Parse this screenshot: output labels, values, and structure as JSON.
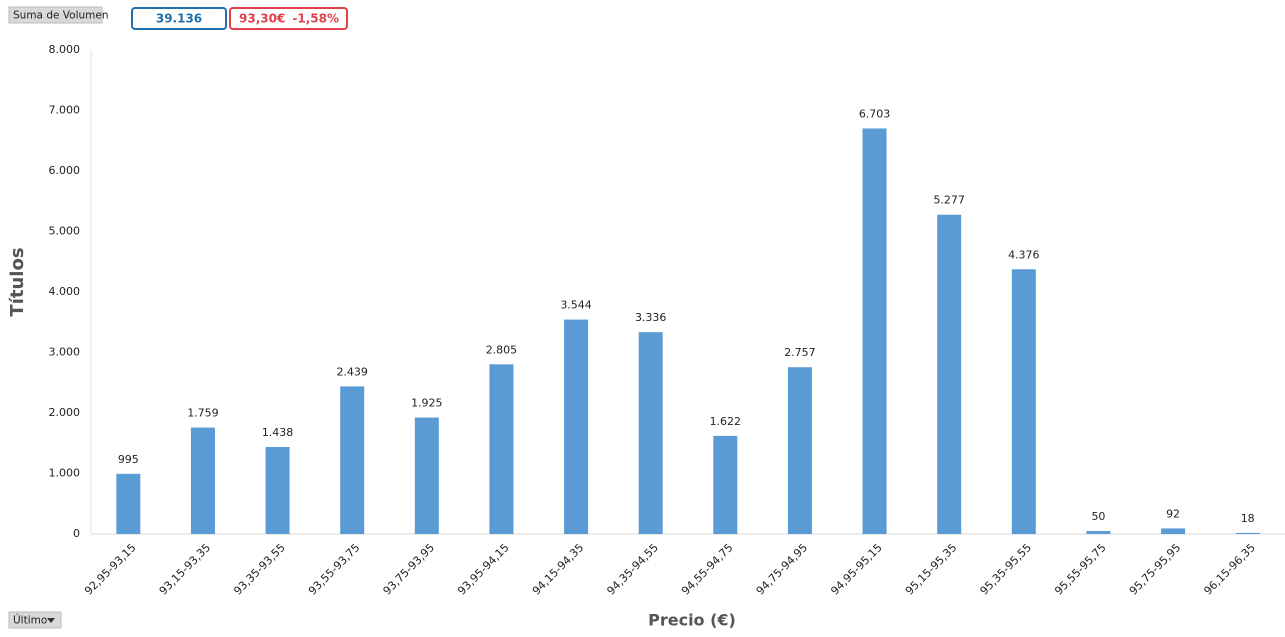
{
  "pivot_field": "Suma de Volumen",
  "total": "39.136",
  "price": "93,30€",
  "change": "-1,58%",
  "filter_field": "Último",
  "chart_data": {
    "type": "bar",
    "x_label": "Precio (€)",
    "y_label": "Títulos",
    "categories": [
      "92,95-93,15",
      "93,15-93,35",
      "93,35-93,55",
      "93,55-93,75",
      "93,75-93,95",
      "93,95-94,15",
      "94,15-94,35",
      "94,35-94,55",
      "94,55-94,75",
      "94,75-94,95",
      "94,95-95,15",
      "95,15-95,35",
      "95,35-95,55",
      "95,55-95,75",
      "95,75-95,95",
      "96,15-96,35"
    ],
    "values": [
      995,
      1759,
      1438,
      2439,
      1925,
      2805,
      3544,
      3336,
      1622,
      2757,
      6703,
      5277,
      4376,
      50,
      92,
      18
    ],
    "value_labels": [
      "995",
      "1.759",
      "1.438",
      "2.439",
      "1.925",
      "2.805",
      "3.544",
      "3.336",
      "1.622",
      "2.757",
      "6.703",
      "5.277",
      "4.376",
      "50",
      "92",
      "18"
    ],
    "color": "#5b9bd5",
    "ylim": [
      0,
      8000
    ],
    "yticks": [
      0,
      {
        "value": 1000,
        "label": "1.000"
      },
      {
        "value": 2000,
        "label": "2.000"
      },
      {
        "value": 3000,
        "label": "3.000"
      },
      {
        "value": 4000,
        "label": "4.000"
      },
      {
        "value": 5000,
        "label": "5.000"
      },
      {
        "value": 6000,
        "label": "6.000"
      },
      {
        "value": 7000,
        "label": "7.000"
      },
      {
        "value": 8000,
        "label": "8.000"
      }
    ],
    "grid": false
  }
}
